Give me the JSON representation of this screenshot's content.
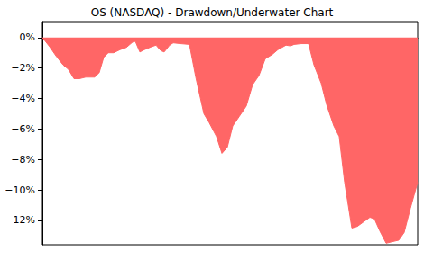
{
  "chart_data": {
    "type": "area",
    "title": "OS (NASDAQ) - Drawdown/Underwater Chart",
    "x": [
      0,
      8,
      15,
      23,
      29,
      35,
      41,
      48,
      58,
      63,
      68,
      73,
      79,
      86,
      93,
      100,
      103,
      108,
      113,
      121,
      126,
      131,
      135,
      141,
      145,
      153,
      163,
      170,
      179,
      185,
      193,
      199,
      205,
      211,
      218,
      226,
      233,
      240,
      247,
      255,
      261,
      270,
      275,
      279,
      287,
      295,
      301,
      309,
      315,
      323,
      329,
      335,
      343,
      349,
      356,
      363,
      368,
      374,
      381,
      388,
      395,
      401,
      408,
      416
    ],
    "values": [
      0,
      -0.6,
      -1.2,
      -1.8,
      -2.1,
      -2.7,
      -2.7,
      -2.6,
      -2.6,
      -2.3,
      -1.3,
      -1.0,
      -1.0,
      -0.8,
      -0.65,
      -0.3,
      -0.25,
      -0.95,
      -0.8,
      -0.6,
      -0.5,
      -0.85,
      -0.95,
      -0.5,
      -0.35,
      -0.4,
      -0.45,
      -2.6,
      -5.0,
      -5.6,
      -6.5,
      -7.6,
      -7.2,
      -5.8,
      -5.2,
      -4.5,
      -3.1,
      -2.5,
      -1.4,
      -1.1,
      -0.8,
      -0.5,
      -0.55,
      -0.45,
      -0.4,
      -0.4,
      -1.8,
      -3.0,
      -4.4,
      -5.8,
      -6.5,
      -9.5,
      -12.5,
      -12.4,
      -12.1,
      -11.8,
      -11.9,
      -12.7,
      -13.5,
      -13.4,
      -13.3,
      -12.8,
      -11.2,
      -9.5
    ],
    "color": "#ff6666",
    "xlim": [
      0,
      416
    ],
    "xticks": [],
    "ylim": [
      -13.6,
      1.05
    ],
    "yticks": [
      {
        "value": -12,
        "label": "−12%"
      },
      {
        "value": -10,
        "label": "−10%"
      },
      {
        "value": -8,
        "label": "−8%"
      },
      {
        "value": -6,
        "label": "−6%"
      },
      {
        "value": -4,
        "label": "−4%"
      },
      {
        "value": -2,
        "label": "−2%"
      },
      {
        "value": 0,
        "label": "0%"
      }
    ],
    "grid": false,
    "tick_labels": "y"
  }
}
